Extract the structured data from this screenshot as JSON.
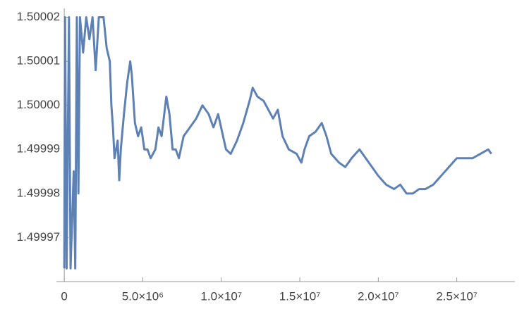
{
  "chart_data": {
    "type": "line",
    "color": "#5e81b5",
    "xlim": [
      -500000,
      28700000
    ],
    "xticks": [
      0,
      {
        "value": 5000000,
        "label": "5.0×10⁶"
      },
      {
        "value": 10000000,
        "label": "1.0×10⁷"
      },
      {
        "value": 15000000,
        "label": "1.5×10⁷"
      },
      {
        "value": 20000000,
        "label": "2.0×10⁷"
      },
      {
        "value": 25000000,
        "label": "2.5×10⁷"
      }
    ],
    "ylim": [
      1.49996,
      1.500022
    ],
    "yticks": [
      1.49997,
      1.49998,
      1.49999,
      {
        "value": 1.5,
        "label": "1.50000"
      },
      1.50001,
      1.50002
    ],
    "x": [
      0,
      50000,
      150000,
      300000,
      400000,
      600000,
      700000,
      800000,
      900000,
      1000000,
      1200000,
      1400000,
      1600000,
      1800000,
      2000000,
      2200000,
      2500000,
      2700000,
      2900000,
      3000000,
      3100000,
      3200000,
      3400000,
      3500000,
      3600000,
      3800000,
      4000000,
      4200000,
      4300000,
      4500000,
      4700000,
      4900000,
      5100000,
      5300000,
      5500000,
      5800000,
      6000000,
      6200000,
      6500000,
      6700000,
      6900000,
      7100000,
      7300000,
      7600000,
      8000000,
      8400000,
      8800000,
      9200000,
      9500000,
      9800000,
      10300000,
      10600000,
      11000000,
      11400000,
      11800000,
      12000000,
      12300000,
      12700000,
      13000000,
      13300000,
      13600000,
      13900000,
      14300000,
      14800000,
      15100000,
      15300000,
      15600000,
      16000000,
      16400000,
      16700000,
      17000000,
      17500000,
      17900000,
      18300000,
      18800000,
      19200000,
      19600000,
      20000000,
      20500000,
      21000000,
      21400000,
      21800000,
      22200000,
      22600000,
      23000000,
      23500000,
      24000000,
      24500000,
      25000000,
      25500000,
      26000000,
      26500000,
      27000000,
      27200000
    ],
    "values": [
      1.499963,
      1.50002,
      1.499963,
      1.50002,
      1.499963,
      1.499985,
      1.499963,
      1.50002,
      1.49998,
      1.50002,
      1.500012,
      1.50002,
      1.500015,
      1.50002,
      1.500008,
      1.50002,
      1.50002,
      1.500013,
      1.50001,
      1.5,
      1.499995,
      1.499988,
      1.499992,
      1.499983,
      1.49999,
      1.499998,
      1.500005,
      1.50001,
      1.500007,
      1.499996,
      1.499993,
      1.499995,
      1.49999,
      1.49999,
      1.499988,
      1.49999,
      1.499995,
      1.499993,
      1.500002,
      1.499998,
      1.49999,
      1.49999,
      1.499988,
      1.499993,
      1.499995,
      1.499997,
      1.5,
      1.499998,
      1.499995,
      1.499998,
      1.49999,
      1.499989,
      1.499992,
      1.499996,
      1.500001,
      1.500004,
      1.500002,
      1.500001,
      1.499999,
      1.499997,
      1.499999,
      1.499993,
      1.49999,
      1.499989,
      1.499987,
      1.49999,
      1.499993,
      1.499994,
      1.499996,
      1.499993,
      1.499989,
      1.499987,
      1.499986,
      1.499988,
      1.49999,
      1.499988,
      1.499986,
      1.499984,
      1.499982,
      1.499981,
      1.499982,
      1.49998,
      1.49998,
      1.499981,
      1.499981,
      1.499982,
      1.499984,
      1.499986,
      1.499988,
      1.499988,
      1.499988,
      1.499989,
      1.49999,
      1.499989
    ]
  }
}
